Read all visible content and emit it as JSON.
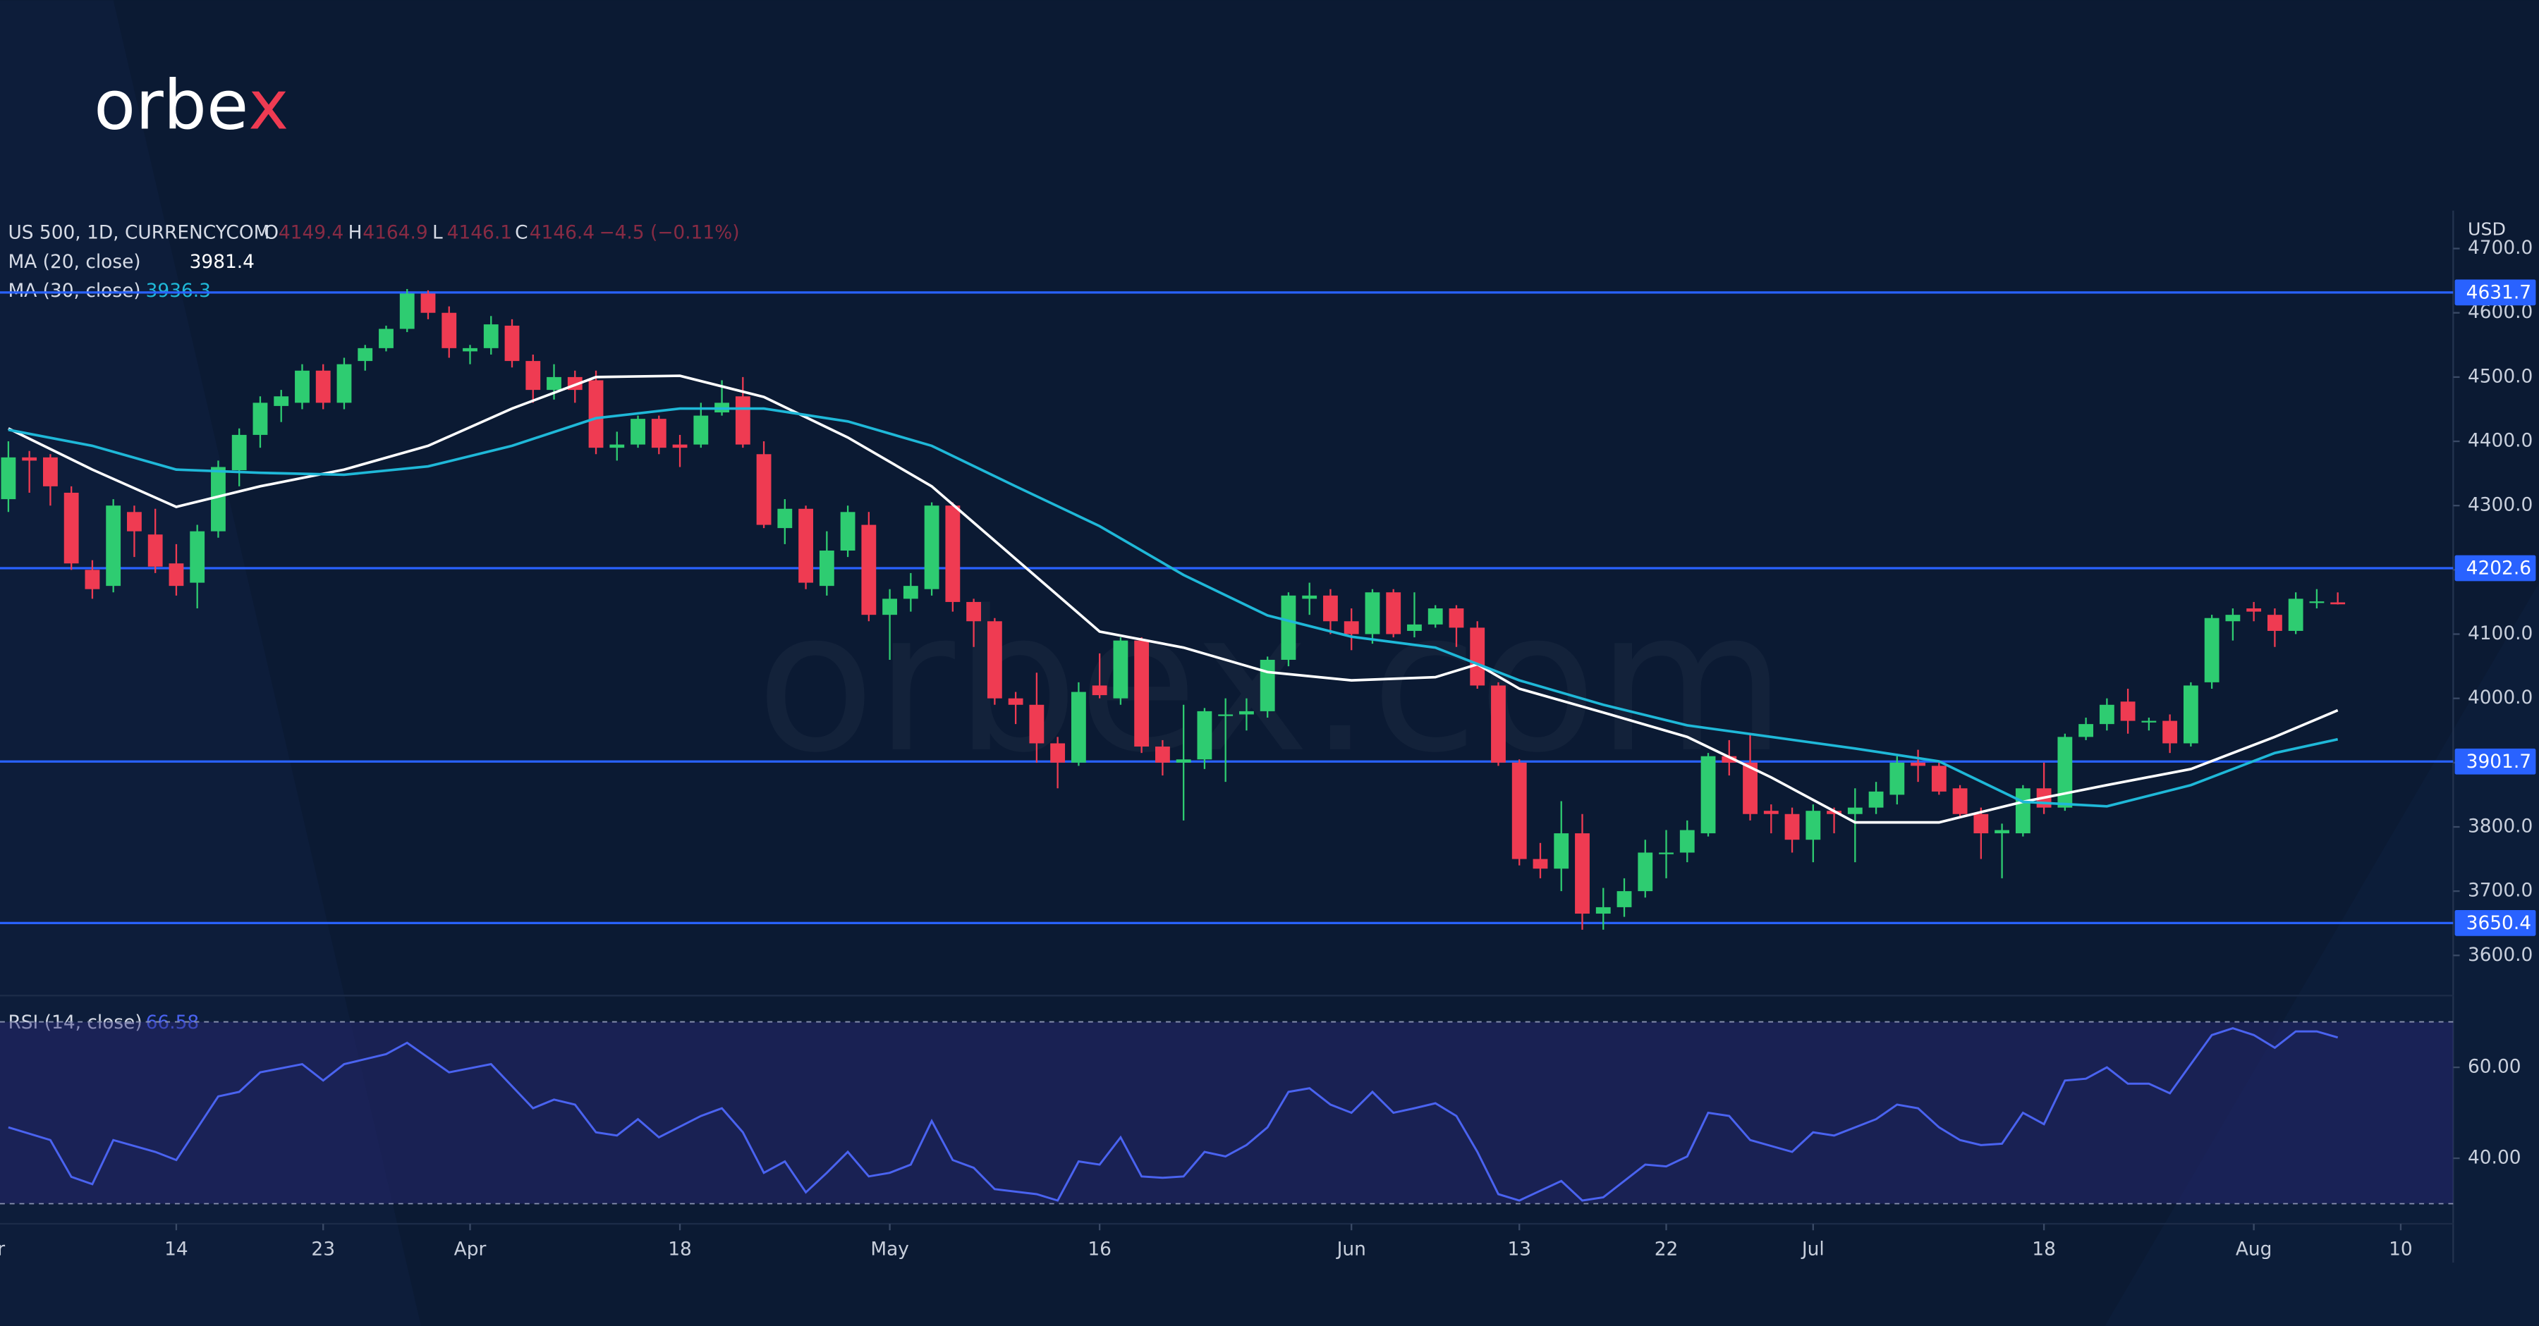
{
  "chart_data": {
    "type": "candlestick",
    "logo": [
      "orbe",
      "x"
    ],
    "watermark": "orbex.com",
    "symbol": "US 500, 1D, CURRENCYCOM",
    "ohlc_labels": [
      "O",
      "H",
      "L",
      "C"
    ],
    "change_label": "−4.5 (−0.11%)",
    "currency": "USD",
    "up_color": "#2ecc71",
    "down_color": "#ef3b52",
    "open": [
      4310,
      4375,
      4375,
      4320,
      4200,
      4175,
      4290,
      4255,
      4210,
      4180,
      4260,
      4355,
      4410,
      4455,
      4460,
      4510,
      4460,
      4525,
      4545,
      4575,
      4630,
      4600,
      4540,
      4545,
      4580,
      4525,
      4480,
      4500,
      4495,
      4390,
      4395,
      4435,
      4395,
      4395,
      4445,
      4470,
      4380,
      4265,
      4295,
      4175,
      4230,
      4270,
      4130,
      4155,
      4170,
      4300,
      4150,
      4120,
      4000,
      3990,
      3930,
      3900,
      4020,
      4000,
      4090,
      3925,
      3900,
      3905,
      3975,
      3975,
      3980,
      4060,
      4155,
      4160,
      4120,
      4100,
      4165,
      4105,
      4115,
      4140,
      4110,
      4020,
      3900,
      3750,
      3735,
      3790,
      3665,
      3675,
      3700,
      3760,
      3760,
      3790,
      3910,
      3900,
      3825,
      3820,
      3780,
      3825,
      3820,
      3830,
      3850,
      3900,
      3895,
      3860,
      3820,
      3790,
      3790,
      3860,
      3830,
      3940,
      3960,
      3995,
      3965,
      3965,
      3930,
      4025,
      4120,
      4140,
      4130,
      4105,
      4150,
      4149.4
    ],
    "high": [
      4400,
      4385,
      4380,
      4330,
      4215,
      4310,
      4300,
      4295,
      4240,
      4270,
      4370,
      4420,
      4470,
      4480,
      4520,
      4520,
      4530,
      4550,
      4580,
      4637,
      4635,
      4610,
      4550,
      4595,
      4590,
      4535,
      4520,
      4510,
      4510,
      4415,
      4440,
      4440,
      4410,
      4460,
      4495,
      4500,
      4400,
      4310,
      4300,
      4260,
      4300,
      4290,
      4170,
      4195,
      4305,
      4305,
      4155,
      4125,
      4010,
      4040,
      3940,
      4025,
      4070,
      4095,
      4095,
      3935,
      3990,
      3985,
      4000,
      4000,
      4065,
      4165,
      4180,
      4170,
      4140,
      4170,
      4170,
      4165,
      4145,
      4145,
      4120,
      4025,
      3905,
      3775,
      3840,
      3820,
      3705,
      3720,
      3780,
      3795,
      3810,
      3915,
      3935,
      3945,
      3835,
      3830,
      3835,
      3830,
      3860,
      3870,
      3910,
      3920,
      3900,
      3865,
      3830,
      3805,
      3865,
      3900,
      3945,
      3970,
      4000,
      4015,
      3970,
      3975,
      4025,
      4130,
      4140,
      4150,
      4140,
      4165,
      4170,
      4164.9
    ],
    "low": [
      4290,
      4320,
      4300,
      4200,
      4155,
      4165,
      4220,
      4195,
      4160,
      4140,
      4250,
      4330,
      4390,
      4430,
      4450,
      4450,
      4450,
      4510,
      4540,
      4570,
      4590,
      4530,
      4520,
      4535,
      4515,
      4460,
      4465,
      4460,
      4380,
      4370,
      4390,
      4380,
      4360,
      4390,
      4440,
      4390,
      4265,
      4240,
      4170,
      4160,
      4220,
      4120,
      4060,
      4135,
      4160,
      4135,
      4080,
      3990,
      3960,
      3900,
      3860,
      3895,
      4000,
      3990,
      3915,
      3880,
      3810,
      3890,
      3870,
      3950,
      3970,
      4050,
      4130,
      4100,
      4075,
      4085,
      4095,
      4095,
      4110,
      4080,
      4015,
      3895,
      3740,
      3720,
      3700,
      3640,
      3640,
      3660,
      3690,
      3720,
      3745,
      3785,
      3880,
      3810,
      3790,
      3760,
      3745,
      3790,
      3745,
      3820,
      3835,
      3870,
      3850,
      3815,
      3750,
      3720,
      3785,
      3820,
      3825,
      3935,
      3950,
      3945,
      3950,
      3915,
      3925,
      4015,
      4090,
      4120,
      4080,
      4100,
      4140,
      4146.1
    ],
    "close": [
      4375,
      4370,
      4330,
      4210,
      4170,
      4300,
      4260,
      4205,
      4175,
      4260,
      4360,
      4410,
      4460,
      4470,
      4510,
      4460,
      4520,
      4545,
      4575,
      4630,
      4600,
      4545,
      4545,
      4582,
      4525,
      4480,
      4500,
      4480,
      4390,
      4395,
      4435,
      4390,
      4390,
      4440,
      4460,
      4395,
      4270,
      4295,
      4180,
      4230,
      4290,
      4130,
      4155,
      4175,
      4300,
      4150,
      4120,
      4000,
      3990,
      3930,
      3900,
      4010,
      4005,
      4090,
      3925,
      3900,
      3905,
      3980,
      3975,
      3980,
      4060,
      4160,
      4160,
      4120,
      4100,
      4165,
      4100,
      4115,
      4140,
      4110,
      4020,
      3900,
      3750,
      3735,
      3790,
      3665,
      3675,
      3700,
      3760,
      3760,
      3795,
      3910,
      3900,
      3820,
      3820,
      3780,
      3825,
      3820,
      3830,
      3855,
      3900,
      3895,
      3855,
      3820,
      3790,
      3795,
      3860,
      3830,
      3940,
      3960,
      3990,
      3965,
      3965,
      3930,
      4020,
      4125,
      4130,
      4135,
      4105,
      4155,
      4150.9,
      4146.4
    ],
    "series": [
      {
        "name": "MA (20, close)",
        "color": "#ffffff",
        "x": [
          0,
          4,
          8,
          12,
          16,
          20,
          24,
          28,
          32,
          36,
          40,
          44,
          48,
          52,
          56,
          60,
          64,
          68,
          70,
          72,
          76,
          80,
          84,
          88,
          92,
          96,
          100,
          104,
          108,
          111
        ],
        "values": [
          4420,
          4356,
          4298,
          4330,
          4356,
          4393,
          4451,
          4500,
          4502,
          4469,
          4406,
          4330,
          4217,
          4104,
          4079,
          4041,
          4028,
          4033,
          4053,
          4015,
          3978,
          3940,
          3877,
          3807,
          3807,
          3839,
          3865,
          3890,
          3940,
          3981.4
        ]
      },
      {
        "name": "MA (30, close)",
        "color": "#1fb8d8",
        "x": [
          0,
          4,
          8,
          12,
          16,
          20,
          24,
          28,
          32,
          36,
          40,
          44,
          48,
          52,
          56,
          60,
          64,
          68,
          72,
          76,
          80,
          84,
          88,
          92,
          96,
          100,
          104,
          108,
          111
        ],
        "values": [
          4418,
          4393,
          4356,
          4351,
          4348,
          4361,
          4393,
          4436,
          4451,
          4451,
          4431,
          4393,
          4330,
          4268,
          4192,
          4129,
          4096,
          4079,
          4028,
          3990,
          3958,
          3940,
          3922,
          3902,
          3839,
          3832,
          3865,
          3915,
          3936.3
        ]
      }
    ],
    "levels": [
      4631.7,
      4202.6,
      3901.7,
      3650.4
    ],
    "level_color": "#2962ff",
    "xlim": [
      -0.4,
      116.5
    ],
    "xticks": [
      {
        "value": -1,
        "label": "Mar"
      },
      {
        "value": 8,
        "label": "14"
      },
      {
        "value": 15,
        "label": "23"
      },
      {
        "value": 22,
        "label": "Apr"
      },
      {
        "value": 32,
        "label": "18"
      },
      {
        "value": 42,
        "label": "May"
      },
      {
        "value": 52,
        "label": "16"
      },
      {
        "value": 64,
        "label": "Jun"
      },
      {
        "value": 72,
        "label": "13"
      },
      {
        "value": 79,
        "label": "22"
      },
      {
        "value": 86,
        "label": "Jul"
      },
      {
        "value": 97,
        "label": "18"
      },
      {
        "value": 107,
        "label": "Aug"
      },
      {
        "value": 114,
        "label": "10"
      }
    ],
    "ylim": [
      3545,
      4759
    ],
    "yticks": [
      {
        "value": 3600,
        "label": "3600.0"
      },
      {
        "value": 3700,
        "label": "3700.0"
      },
      {
        "value": 3800,
        "label": "3800.0"
      },
      {
        "value": 3900,
        "label": "3900.0"
      },
      {
        "value": 4000,
        "label": "4000.0"
      },
      {
        "value": 4100,
        "label": "4100.0"
      },
      {
        "value": 4200,
        "label": "4200.0"
      },
      {
        "value": 4300,
        "label": "4300.0"
      },
      {
        "value": 4400,
        "label": "4400.0"
      },
      {
        "value": 4500,
        "label": "4500.0"
      },
      {
        "value": 4600,
        "label": "4600.0"
      },
      {
        "value": 4700,
        "label": "4700.0"
      }
    ],
    "rsi": {
      "name": "RSI (14, close)",
      "color": "#4a63f0",
      "x": [
        0,
        2,
        3,
        4,
        5,
        7,
        8,
        10,
        11,
        12,
        14,
        15,
        16,
        18,
        19,
        21,
        23,
        25,
        26,
        27,
        28,
        29,
        30,
        31,
        33,
        34,
        35,
        36,
        37,
        38,
        39,
        40,
        41,
        42,
        43,
        44,
        45,
        46,
        47,
        49,
        50,
        51,
        52,
        53,
        54,
        55,
        56,
        57,
        58,
        59,
        60,
        61,
        62,
        63,
        64,
        65,
        66,
        67,
        68,
        69,
        70,
        71,
        72,
        74,
        75,
        76,
        78,
        79,
        80,
        81,
        82,
        83,
        85,
        86,
        87,
        89,
        90,
        91,
        92,
        93,
        94,
        95,
        96,
        97,
        98,
        99,
        100,
        101,
        102,
        103,
        104,
        105,
        106,
        107,
        108,
        109,
        110,
        111
      ],
      "values": [
        46.8,
        44,
        35.9,
        34.3,
        44,
        41.4,
        39.6,
        53.6,
        54.6,
        58.9,
        60.7,
        57.1,
        60.7,
        62.9,
        65.4,
        58.9,
        60.7,
        51,
        52.9,
        51.8,
        45.7,
        45,
        48.6,
        44.6,
        49.3,
        51,
        45.7,
        36.8,
        39.3,
        32.5,
        36.8,
        41.4,
        36,
        36.8,
        38.6,
        48.2,
        39.6,
        37.9,
        33.2,
        32.1,
        30.7,
        39.3,
        38.6,
        44.6,
        36,
        35.7,
        36,
        41.4,
        40.4,
        42.9,
        46.8,
        54.6,
        55.4,
        51.8,
        50,
        54.6,
        50,
        51,
        52.1,
        49.3,
        41.4,
        32.1,
        30.7,
        35,
        30.7,
        31.4,
        38.6,
        38.2,
        40.4,
        50,
        49.3,
        44,
        41.4,
        45.7,
        45,
        48.6,
        51.8,
        51,
        46.8,
        44,
        42.9,
        43.2,
        50,
        47.5,
        57.1,
        57.5,
        60,
        56.4,
        56.4,
        54.3,
        60.7,
        67.1,
        68.6,
        67.1,
        64.3,
        67.9,
        67.9,
        66.58
      ],
      "ylim": [
        27,
        74
      ],
      "yticks": [
        {
          "value": 40,
          "label": "40.00"
        },
        {
          "value": 60,
          "label": "60.00"
        }
      ],
      "levels": [
        70,
        30
      ]
    }
  }
}
